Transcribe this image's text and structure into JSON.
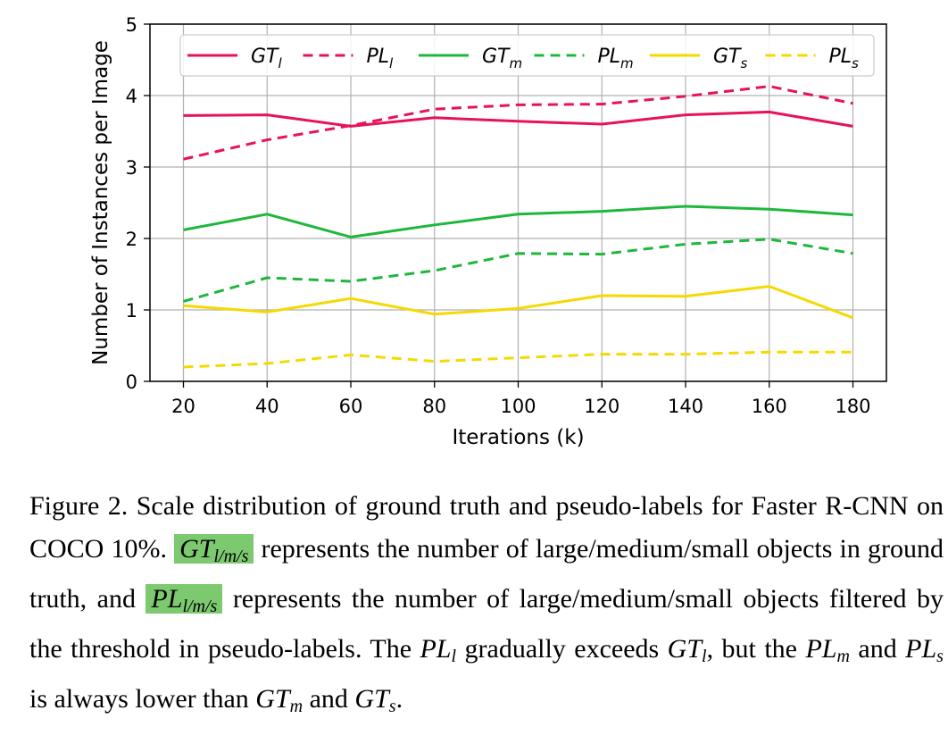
{
  "chart_data": {
    "type": "line",
    "xlabel": "Iterations (k)",
    "ylabel": "Number of Instances per Image",
    "x": [
      20,
      40,
      60,
      80,
      100,
      120,
      140,
      160,
      180
    ],
    "xticks": [
      "20",
      "40",
      "60",
      "80",
      "100",
      "120",
      "140",
      "160",
      "180"
    ],
    "yticks": [
      "0",
      "1",
      "2",
      "3",
      "4",
      "5"
    ],
    "xlim": [
      12,
      188
    ],
    "ylim": [
      0,
      5
    ],
    "grid": true,
    "legend_position": "top",
    "series": [
      {
        "id": "gt-l",
        "name": "GT",
        "sub": "l",
        "color": "#e8115b",
        "dash": false,
        "values": [
          3.72,
          3.73,
          3.57,
          3.69,
          3.64,
          3.6,
          3.73,
          3.77,
          3.57
        ]
      },
      {
        "id": "pl-l",
        "name": "PL",
        "sub": "l",
        "color": "#e8115b",
        "dash": true,
        "values": [
          3.11,
          3.38,
          3.58,
          3.81,
          3.87,
          3.88,
          3.99,
          4.13,
          3.89
        ]
      },
      {
        "id": "gt-m",
        "name": "GT",
        "sub": "m",
        "color": "#1db83b",
        "dash": false,
        "values": [
          2.12,
          2.34,
          2.02,
          2.19,
          2.34,
          2.38,
          2.45,
          2.41,
          2.33
        ]
      },
      {
        "id": "pl-m",
        "name": "PL",
        "sub": "m",
        "color": "#1db83b",
        "dash": true,
        "values": [
          1.12,
          1.45,
          1.4,
          1.55,
          1.79,
          1.78,
          1.92,
          1.99,
          1.79
        ]
      },
      {
        "id": "gt-s",
        "name": "GT",
        "sub": "s",
        "color": "#f5d900",
        "dash": false,
        "values": [
          1.06,
          0.97,
          1.16,
          0.94,
          1.02,
          1.2,
          1.19,
          1.33,
          0.89
        ]
      },
      {
        "id": "pl-s",
        "name": "PL",
        "sub": "s",
        "color": "#f5d900",
        "dash": true,
        "values": [
          0.2,
          0.25,
          0.37,
          0.28,
          0.33,
          0.38,
          0.38,
          0.41,
          0.41
        ]
      }
    ]
  },
  "caption": {
    "p1": "Figure 2. Scale distribution of ground truth and pseudo-labels for Faster R-CNN on COCO 10%. ",
    "hl1_base": "GT",
    "hl1_sub": "l/m/s",
    "p2": " represents the number of large/medium/small objects in ground truth, and ",
    "hl2_base": "PL",
    "hl2_sub": "l/m/s",
    "p3": " represents the number of large/medium/small objects filtered by the threshold in pseudo-labels. The ",
    "m1_base": "PL",
    "m1_sub": "l",
    "p4": " gradually exceeds ",
    "m2_base": "GT",
    "m2_sub": "l",
    "p5": ", but the ",
    "m3_base": "PL",
    "m3_sub": "m",
    "p6": " and ",
    "m4_base": "PL",
    "m4_sub": "s",
    "p7": " is always lower than ",
    "m5_base": "GT",
    "m5_sub": "m",
    "p8": " and ",
    "m6_base": "GT",
    "m6_sub": "s",
    "p9": "."
  }
}
